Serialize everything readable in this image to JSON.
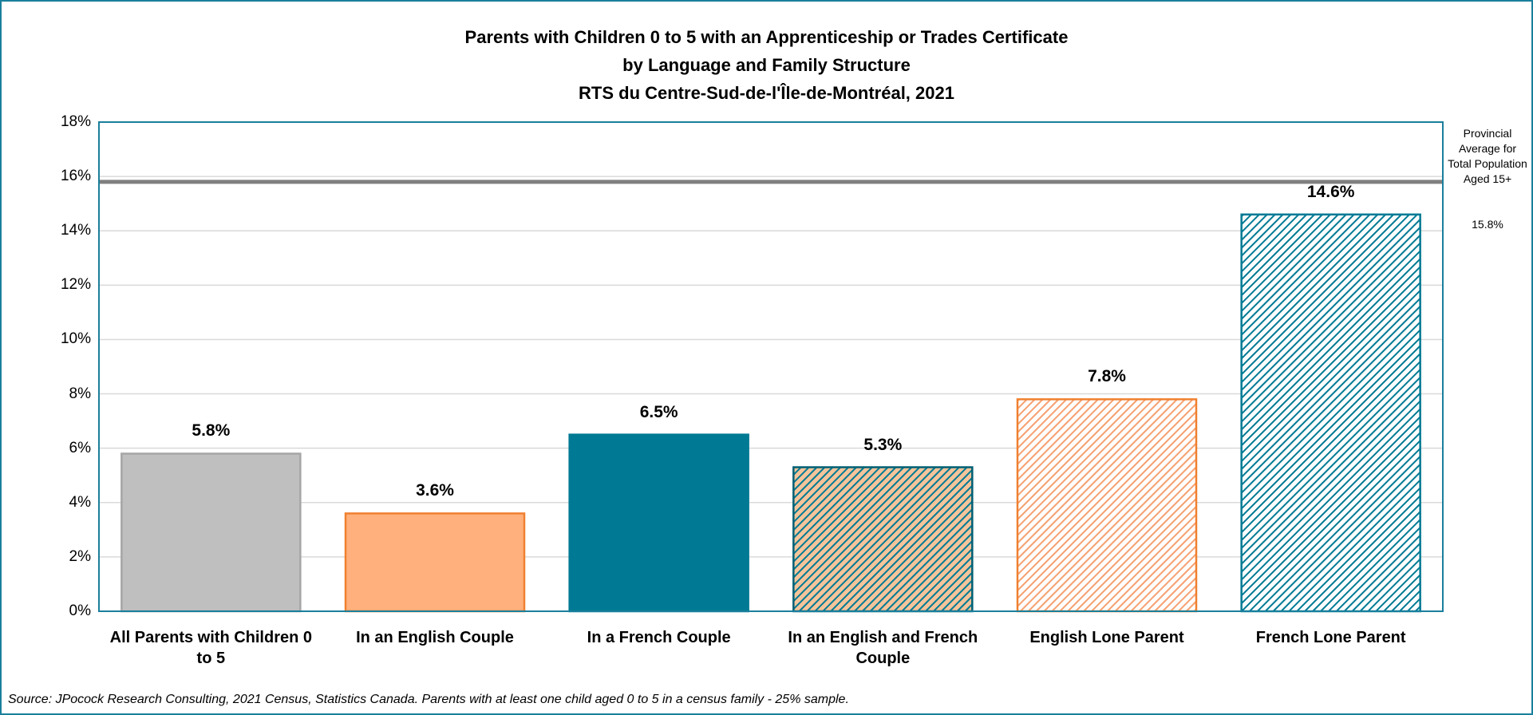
{
  "chart_data": {
    "type": "bar",
    "title": [
      "Parents with Children 0 to 5 with an Apprenticeship or Trades Certificate",
      "by Language and Family Structure",
      "RTS du Centre-Sud-de-l'Île-de-Montréal, 2021"
    ],
    "categories": [
      "All Parents with Children 0 to 5",
      "In an English Couple",
      "In a French Couple",
      "In an English and French Couple",
      "English Lone Parent",
      "French Lone Parent"
    ],
    "values": [
      5.8,
      3.6,
      6.5,
      5.3,
      7.8,
      14.6
    ],
    "value_labels": [
      "5.8%",
      "3.6%",
      "6.5%",
      "5.3%",
      "7.8%",
      "14.6%"
    ],
    "colors": [
      "#bfbfbf",
      "#ffb07c",
      "#007a94",
      "#f5c49a",
      "#ffffff",
      "#ffffff"
    ],
    "edge_colors": [
      "#a6a6a6",
      "#f08030",
      "#007a94",
      "#005f73",
      "#f08030",
      "#007a94"
    ],
    "hatch_colors": [
      null,
      null,
      null,
      "#007a94",
      "#f5a070",
      "#007a94"
    ],
    "ylim": [
      0,
      18
    ],
    "yticks": [
      {
        "value": 0,
        "label": "0%"
      },
      {
        "value": 2,
        "label": "2%"
      },
      {
        "value": 4,
        "label": "4%"
      },
      {
        "value": 6,
        "label": "6%"
      },
      {
        "value": 8,
        "label": "8%"
      },
      {
        "value": 10,
        "label": "10%"
      },
      {
        "value": 12,
        "label": "12%"
      },
      {
        "value": 14,
        "label": "14%"
      },
      {
        "value": 16,
        "label": "16%"
      },
      {
        "value": 18,
        "label": "18%"
      }
    ],
    "grid": true,
    "reference_line": {
      "value": 15.8,
      "label": "15.8%",
      "text": "Provincial Average for Total Population Aged 15+",
      "color": "#7f7f7f"
    },
    "source": "Source: JPocock Research Consulting, 2021 Census, Statistics Canada. Parents with at least one child aged 0 to 5 in a census family - 25% sample."
  }
}
